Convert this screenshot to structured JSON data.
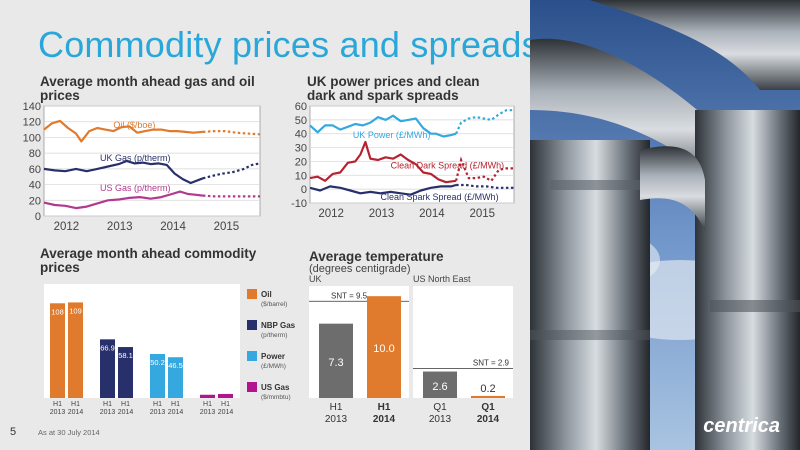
{
  "slide": {
    "title": "Commodity prices and spreads",
    "page_number": "5",
    "footnote": "As at 30 July 2014",
    "logo_text": "centrica"
  },
  "chart_data": [
    {
      "type": "line",
      "title": "Average month ahead gas and oil prices",
      "ylim": [
        0,
        140
      ],
      "yticks": [
        0,
        20,
        40,
        60,
        80,
        100,
        120,
        140
      ],
      "xlim": [
        2011.6,
        2015.65
      ],
      "xticks": [
        {
          "label": "2012",
          "x": 2012
        },
        {
          "label": "2013",
          "x": 2013
        },
        {
          "label": "2014",
          "x": 2014
        },
        {
          "label": "2015",
          "x": 2015
        }
      ],
      "actual_end": 2014.58,
      "series": [
        {
          "name": "Oil ($/boe)",
          "color": "#e07a2c",
          "points": [
            [
              2011.6,
              110
            ],
            [
              2011.75,
              118
            ],
            [
              2011.9,
              121
            ],
            [
              2012.05,
              112
            ],
            [
              2012.2,
              105
            ],
            [
              2012.3,
              95
            ],
            [
              2012.45,
              108
            ],
            [
              2012.6,
              112
            ],
            [
              2012.75,
              110
            ],
            [
              2012.9,
              108
            ],
            [
              2013.05,
              113
            ],
            [
              2013.2,
              114
            ],
            [
              2013.35,
              106
            ],
            [
              2013.5,
              108
            ],
            [
              2013.65,
              110
            ],
            [
              2013.8,
              110
            ],
            [
              2013.95,
              108
            ],
            [
              2014.1,
              108
            ],
            [
              2014.25,
              107
            ],
            [
              2014.4,
              106
            ],
            [
              2014.58,
              107
            ],
            [
              2014.8,
              108
            ],
            [
              2015.0,
              108
            ],
            [
              2015.2,
              106
            ],
            [
              2015.4,
              105
            ],
            [
              2015.65,
              104
            ]
          ]
        },
        {
          "name": "UK Gas (p/therm)",
          "color": "#27306b",
          "points": [
            [
              2011.6,
              60
            ],
            [
              2011.8,
              58
            ],
            [
              2012.0,
              57
            ],
            [
              2012.2,
              60
            ],
            [
              2012.4,
              57
            ],
            [
              2012.6,
              60
            ],
            [
              2012.8,
              63
            ],
            [
              2013.0,
              66
            ],
            [
              2013.15,
              70
            ],
            [
              2013.3,
              67
            ],
            [
              2013.45,
              68
            ],
            [
              2013.6,
              66
            ],
            [
              2013.75,
              67
            ],
            [
              2013.9,
              65
            ],
            [
              2014.05,
              54
            ],
            [
              2014.2,
              47
            ],
            [
              2014.35,
              42
            ],
            [
              2014.58,
              48
            ],
            [
              2014.75,
              51
            ],
            [
              2014.95,
              54
            ],
            [
              2015.15,
              56
            ],
            [
              2015.35,
              60
            ],
            [
              2015.5,
              65
            ],
            [
              2015.65,
              67
            ]
          ]
        },
        {
          "name": "US Gas (p/therm)",
          "color": "#b23a8e",
          "points": [
            [
              2011.6,
              17
            ],
            [
              2011.8,
              14
            ],
            [
              2012.0,
              13
            ],
            [
              2012.2,
              10
            ],
            [
              2012.4,
              12
            ],
            [
              2012.6,
              16
            ],
            [
              2012.8,
              20
            ],
            [
              2013.0,
              21
            ],
            [
              2013.2,
              23
            ],
            [
              2013.4,
              24
            ],
            [
              2013.6,
              22
            ],
            [
              2013.8,
              24
            ],
            [
              2014.0,
              28
            ],
            [
              2014.15,
              31
            ],
            [
              2014.3,
              28
            ],
            [
              2014.45,
              27
            ],
            [
              2014.58,
              26
            ],
            [
              2014.8,
              25
            ],
            [
              2015.0,
              25
            ],
            [
              2015.3,
              25
            ],
            [
              2015.65,
              25
            ]
          ]
        }
      ],
      "labels": [
        {
          "text": "Oil ($/boe)",
          "x": 2012.9,
          "y": 112
        },
        {
          "text": "UK Gas (p/therm)",
          "x": 2012.65,
          "y": 70
        },
        {
          "text": "US Gas (p/therm)",
          "x": 2012.65,
          "y": 32
        }
      ]
    },
    {
      "type": "line",
      "title": "UK power prices and clean dark and spark spreads",
      "ylim": [
        -10,
        60
      ],
      "yticks": [
        -10,
        0,
        10,
        20,
        30,
        40,
        50,
        60
      ],
      "xlim": [
        2011.6,
        2015.65
      ],
      "xticks": [
        {
          "label": "2012",
          "x": 2012
        },
        {
          "label": "2013",
          "x": 2013
        },
        {
          "label": "2014",
          "x": 2014
        },
        {
          "label": "2015",
          "x": 2015
        }
      ],
      "actual_end": 2014.5,
      "series": [
        {
          "name": "UK Power (£/MWh)",
          "color": "#35a8df",
          "points": [
            [
              2011.6,
              46
            ],
            [
              2011.75,
              41
            ],
            [
              2011.9,
              46
            ],
            [
              2012.05,
              46
            ],
            [
              2012.2,
              43
            ],
            [
              2012.35,
              45
            ],
            [
              2012.5,
              47
            ],
            [
              2012.65,
              46
            ],
            [
              2012.8,
              48
            ],
            [
              2012.95,
              52
            ],
            [
              2013.1,
              50
            ],
            [
              2013.25,
              53
            ],
            [
              2013.4,
              49
            ],
            [
              2013.55,
              50
            ],
            [
              2013.7,
              51
            ],
            [
              2013.85,
              44
            ],
            [
              2014.0,
              40
            ],
            [
              2014.1,
              40
            ],
            [
              2014.25,
              38
            ],
            [
              2014.4,
              39
            ],
            [
              2014.5,
              40
            ],
            [
              2014.6,
              48
            ],
            [
              2014.75,
              51
            ],
            [
              2014.9,
              52
            ],
            [
              2015.05,
              51
            ],
            [
              2015.2,
              50
            ],
            [
              2015.35,
              54
            ],
            [
              2015.5,
              57
            ],
            [
              2015.65,
              57
            ]
          ]
        },
        {
          "name": "Clean Dark Spread (£/MWh)",
          "color": "#b32330",
          "points": [
            [
              2011.6,
              8
            ],
            [
              2011.75,
              9
            ],
            [
              2011.9,
              6
            ],
            [
              2012.05,
              11
            ],
            [
              2012.2,
              12
            ],
            [
              2012.35,
              19
            ],
            [
              2012.5,
              20
            ],
            [
              2012.6,
              25
            ],
            [
              2012.7,
              34
            ],
            [
              2012.8,
              22
            ],
            [
              2012.95,
              21
            ],
            [
              2013.1,
              23
            ],
            [
              2013.25,
              22
            ],
            [
              2013.4,
              25
            ],
            [
              2013.55,
              21
            ],
            [
              2013.7,
              18
            ],
            [
              2013.85,
              12
            ],
            [
              2014.0,
              11
            ],
            [
              2014.15,
              7
            ],
            [
              2014.3,
              5
            ],
            [
              2014.5,
              6
            ],
            [
              2014.6,
              21
            ],
            [
              2014.75,
              8
            ],
            [
              2014.9,
              8
            ],
            [
              2015.05,
              9
            ],
            [
              2015.2,
              6
            ],
            [
              2015.35,
              14
            ],
            [
              2015.5,
              15
            ],
            [
              2015.65,
              15
            ]
          ]
        },
        {
          "name": "Clean Spark Spread (£/MWh)",
          "color": "#27306b",
          "points": [
            [
              2011.6,
              1
            ],
            [
              2011.8,
              -1
            ],
            [
              2012.0,
              2
            ],
            [
              2012.2,
              1
            ],
            [
              2012.4,
              -1
            ],
            [
              2012.6,
              -3
            ],
            [
              2012.8,
              -2
            ],
            [
              2013.0,
              -3
            ],
            [
              2013.2,
              -2
            ],
            [
              2013.4,
              -3
            ],
            [
              2013.6,
              -4
            ],
            [
              2013.8,
              -1
            ],
            [
              2014.0,
              1
            ],
            [
              2014.2,
              2
            ],
            [
              2014.4,
              2
            ],
            [
              2014.5,
              3
            ],
            [
              2014.7,
              3
            ],
            [
              2014.9,
              2
            ],
            [
              2015.1,
              2
            ],
            [
              2015.3,
              1
            ],
            [
              2015.5,
              1
            ],
            [
              2015.65,
              1
            ]
          ]
        }
      ],
      "labels": [
        {
          "text": "UK Power (£/MWh)",
          "x": 2012.45,
          "y": 37
        },
        {
          "text": "Clean Dark Spread (£/MWh)",
          "x": 2013.2,
          "y": 15
        },
        {
          "text": "Clean Spark Spread (£/MWh)",
          "x": 2013.0,
          "y": -8
        }
      ]
    },
    {
      "type": "bar",
      "title": "Average month ahead commodity prices",
      "ylim": [
        0,
        130
      ],
      "groups": [
        {
          "name": "Oil",
          "unit": "($/barrel)",
          "color": "#e07a2c",
          "bars": [
            {
              "label": [
                "H1",
                "2013"
              ],
              "value": 108
            },
            {
              "label": [
                "H1",
                "2014"
              ],
              "value": 109
            }
          ]
        },
        {
          "name": "NBP Gas",
          "unit": "(p/therm)",
          "color": "#27306b",
          "bars": [
            {
              "label": [
                "H1",
                "2013"
              ],
              "value": 66.9
            },
            {
              "label": [
                "H1",
                "2014"
              ],
              "value": 58.1
            }
          ]
        },
        {
          "name": "Power",
          "unit": "(£/MWh)",
          "color": "#35a8df",
          "bars": [
            {
              "label": [
                "H1",
                "2013"
              ],
              "value": 50.2
            },
            {
              "label": [
                "H1",
                "2014"
              ],
              "value": 46.5
            }
          ]
        },
        {
          "name": "US Gas",
          "unit": "($/mmbtu)",
          "color": "#b0158f",
          "bars": [
            {
              "label": [
                "H1",
                "2013"
              ],
              "value": 3.7
            },
            {
              "label": [
                "H1",
                "2014"
              ],
              "value": 4.6
            }
          ]
        }
      ],
      "data_labels": [
        "108",
        "109",
        "66.9",
        "58.1",
        "50.2",
        "46.5",
        "3.7",
        "4.6"
      ]
    },
    {
      "type": "bar",
      "title": "Average temperature",
      "subtitle": "(degrees centigrade)",
      "panels": [
        {
          "name": "UK",
          "ylim": [
            0,
            11
          ],
          "snt": {
            "label": "SNT = 9.5",
            "value": 9.5
          },
          "bars": [
            {
              "label": [
                "H1",
                "2013"
              ],
              "value": 7.3,
              "text": "7.3",
              "color": "#6d6d6d"
            },
            {
              "label": [
                "H1",
                "2014"
              ],
              "value": 10.0,
              "text": "10.0",
              "color": "#e07a2c"
            }
          ]
        },
        {
          "name": "US North East",
          "ylim": [
            0,
            11
          ],
          "snt": {
            "label": "SNT = 2.9",
            "value": 2.9
          },
          "bars": [
            {
              "label": [
                "Q1",
                "2013"
              ],
              "value": 2.6,
              "text": "2.6",
              "color": "#6d6d6d"
            },
            {
              "label": [
                "Q1",
                "2014"
              ],
              "value": 0.2,
              "text": "0.2",
              "color": "#e07a2c"
            }
          ]
        }
      ]
    }
  ]
}
